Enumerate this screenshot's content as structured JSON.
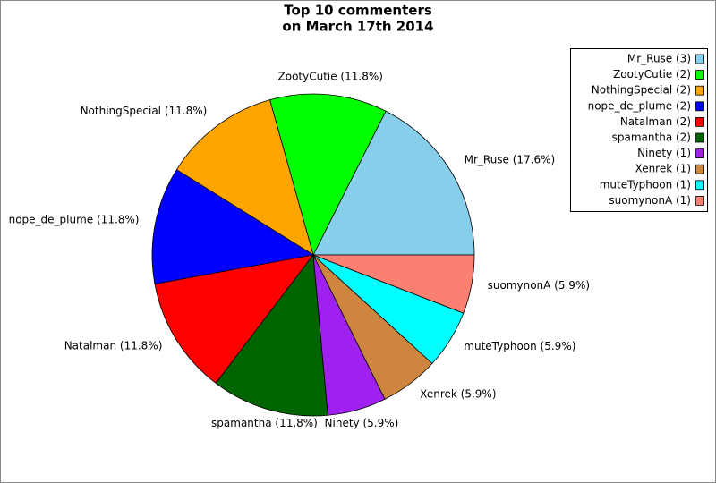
{
  "chart_data": {
    "type": "pie",
    "title": "Top 10 commenters",
    "subtitle": "on March 17th 2014",
    "values": [
      17.6,
      11.8,
      11.8,
      11.8,
      11.8,
      11.8,
      5.9,
      5.9,
      5.9,
      5.9
    ],
    "value_labels": [
      "Mr_Ruse (17.6%)",
      "ZootyCutie (11.8%)",
      "NothingSpecial (11.8%)",
      "nope_de_plume (11.8%)",
      "Natalman (11.8%)",
      "spamantha (11.8%)",
      "Ninety (5.9%)",
      "Xenrek (5.9%)",
      "muteTyphoon (5.9%)",
      "suomynonA (5.9%)"
    ],
    "legend": [
      "Mr_Ruse (3)",
      "ZootyCutie (2)",
      "NothingSpecial (2)",
      "nope_de_plume (2)",
      "Natalman (2)",
      "spamantha (2)",
      "Ninety (1)",
      "Xenrek (1)",
      "muteTyphoon (1)",
      "suomynonA (1)"
    ],
    "colors": [
      "#87ceeb",
      "#00ff00",
      "#ffa500",
      "#0000ff",
      "#ff0000",
      "#006400",
      "#a020f0",
      "#cd853f",
      "#00ffff",
      "#fa8072"
    ],
    "legend_position": "upper right"
  }
}
